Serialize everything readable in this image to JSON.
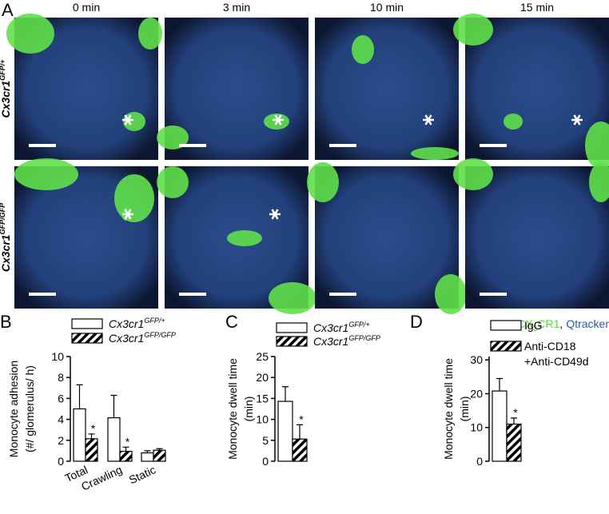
{
  "panel_a": {
    "letter": "A",
    "columns": [
      "0 min",
      "3 min",
      "10 min",
      "15 min"
    ],
    "rows": [
      {
        "name": "Cx3cr1",
        "name_sup": "GFP/+"
      },
      {
        "name": "Cx3cr1",
        "name_sup": "GFP/GFP"
      }
    ],
    "legend": {
      "cx": "CX",
      "cx_sub": "3",
      "cx_rest": "CR1",
      "sep": ",",
      "qtracker": "Qtracker"
    }
  },
  "chart_data": [
    {
      "type": "bar",
      "panel": "B",
      "ylabel": [
        "Monocyte adhesion",
        "(#/ glomerulus/ h)"
      ],
      "categories": [
        "Total",
        "Crawling",
        "Static"
      ],
      "ylim": [
        0,
        10
      ],
      "yticks": [
        0,
        2,
        4,
        6,
        8,
        10
      ],
      "series": [
        {
          "name": "Cx3cr1",
          "name_sup": "GFP/+",
          "color": "#ffffff",
          "values": [
            5.0,
            4.15,
            0.8
          ],
          "errors": [
            2.3,
            2.15,
            0.2
          ]
        },
        {
          "name": "Cx3cr1",
          "name_sup": "GFP/GFP",
          "color": "hatch",
          "values": [
            2.15,
            0.95,
            1.05
          ],
          "errors": [
            0.45,
            0.4,
            0.15
          ],
          "significance": [
            "*",
            "*",
            null
          ]
        }
      ]
    },
    {
      "type": "bar",
      "panel": "C",
      "ylabel": [
        "Monocyte dwell time",
        "(min)"
      ],
      "categories": [
        null
      ],
      "ylim": [
        0,
        25
      ],
      "yticks": [
        0,
        5,
        10,
        15,
        20,
        25
      ],
      "series": [
        {
          "name": "Cx3cr1",
          "name_sup": "GFP/+",
          "color": "#ffffff",
          "values": [
            14.3
          ],
          "errors": [
            3.5
          ]
        },
        {
          "name": "Cx3cr1",
          "name_sup": "GFP/GFP",
          "color": "hatch",
          "values": [
            5.3
          ],
          "errors": [
            3.4
          ],
          "significance": [
            "*"
          ]
        }
      ]
    },
    {
      "type": "bar",
      "panel": "D",
      "ylabel": [
        "Monocyte dwell time",
        "(min)"
      ],
      "categories": [
        null
      ],
      "ylim": [
        0,
        31
      ],
      "yticks": [
        0,
        10,
        20,
        30
      ],
      "series": [
        {
          "name": "IgG",
          "color": "#ffffff",
          "values": [
            20.8
          ],
          "errors": [
            3.7
          ]
        },
        {
          "name": "Anti-CD18",
          "name_line2": "+Anti-CD49d",
          "color": "hatch",
          "values": [
            11.0
          ],
          "errors": [
            1.8
          ],
          "significance": [
            "*"
          ]
        }
      ]
    }
  ]
}
